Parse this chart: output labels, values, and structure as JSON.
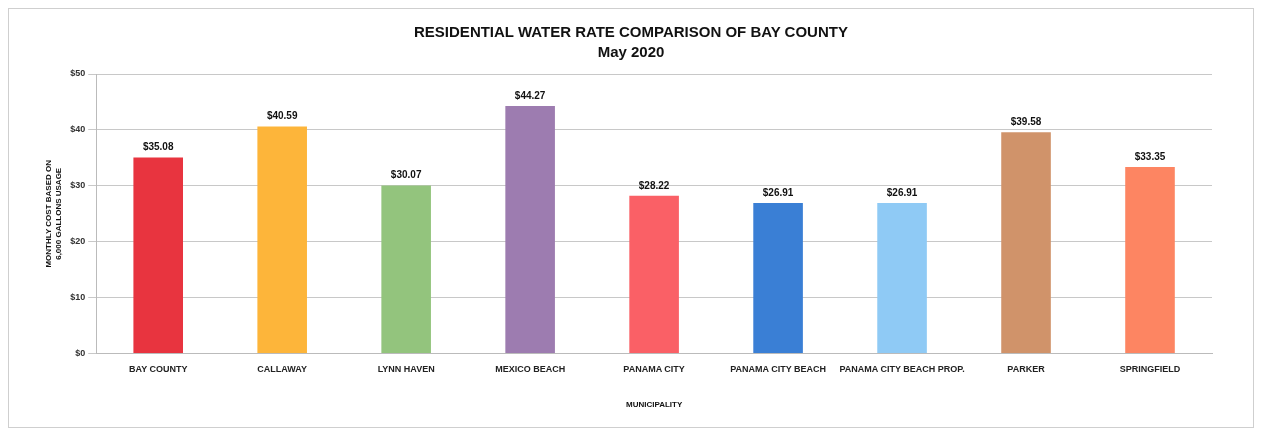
{
  "chart_data": {
    "type": "bar",
    "title": "RESIDENTIAL WATER RATE COMPARISON OF BAY COUNTY",
    "subtitle": "May 2020",
    "xlabel": "MUNICIPALITY",
    "ylabel": "MONTHLY COST BASED ON 6,000 GALLONS USAGE",
    "categories": [
      "BAY COUNTY",
      "CALLAWAY",
      "LYNN HAVEN",
      "MEXICO BEACH",
      "PANAMA CITY",
      "PANAMA CITY BEACH",
      "PANAMA CITY BEACH PROP.",
      "PARKER",
      "SPRINGFIELD"
    ],
    "values": [
      35.08,
      40.59,
      30.07,
      44.27,
      28.22,
      26.91,
      26.91,
      39.58,
      33.35
    ],
    "value_labels": [
      "$35.08",
      "$40.59",
      "$30.07",
      "$44.27",
      "$28.22",
      "$26.91",
      "$26.91",
      "$39.58",
      "$33.35"
    ],
    "colors": [
      "#e8343f",
      "#fdb53a",
      "#93c47d",
      "#9d7cb0",
      "#fa6066",
      "#3a7fd5",
      "#8fcaf5",
      "#d0936a",
      "#fd8562"
    ],
    "ylim": [
      0,
      50
    ],
    "yticks": [
      {
        "value": 0,
        "label": "$0"
      },
      {
        "value": 10,
        "label": "$10"
      },
      {
        "value": 20,
        "label": "$20"
      },
      {
        "value": 30,
        "label": "$30"
      },
      {
        "value": 40,
        "label": "$40"
      },
      {
        "value": 50,
        "label": "$50"
      }
    ],
    "grid": "y"
  }
}
